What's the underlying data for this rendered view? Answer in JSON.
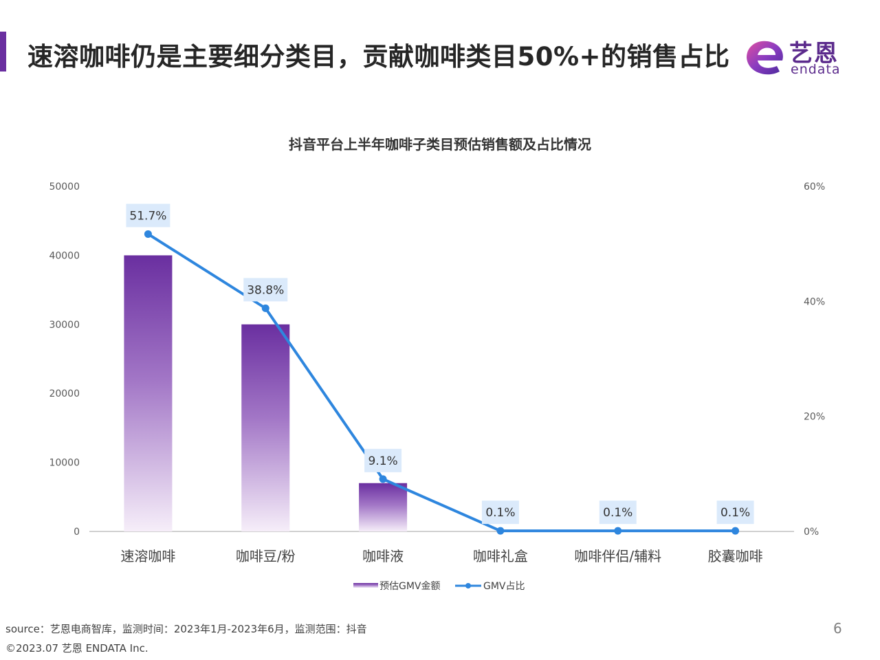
{
  "header": {
    "title": "速溶咖啡仍是主要细分类目，贡献咖啡类目50%+的销售占比",
    "logo_cn": "艺恩",
    "logo_en": "endata"
  },
  "colors": {
    "accent": "#6a2fa0",
    "bar_top": "#6a2fa0",
    "bar_bottom": "#f6eef9",
    "line": "#2e86de",
    "label_bg": "#dbeafb"
  },
  "chart_data": {
    "type": "bar",
    "title": "抖音平台上半年咖啡子类目预估销售额及占比情况",
    "categories": [
      "速溶咖啡",
      "咖啡豆/粉",
      "咖啡液",
      "咖啡礼盒",
      "咖啡伴侣/辅料",
      "胶囊咖啡"
    ],
    "series": [
      {
        "name": "预估GMV金额",
        "type": "bar",
        "axis": "left",
        "values": [
          40000,
          30000,
          7000,
          0,
          0,
          0
        ]
      },
      {
        "name": "GMV占比",
        "type": "line",
        "axis": "right",
        "values": [
          51.7,
          38.8,
          9.1,
          0.1,
          0.1,
          0.1
        ],
        "labels": [
          "51.7%",
          "38.8%",
          "9.1%",
          "0.1%",
          "0.1%",
          "0.1%"
        ]
      }
    ],
    "ylim": [
      0,
      50000
    ],
    "yticks": [
      "0",
      "10000",
      "20000",
      "30000",
      "40000",
      "50000"
    ],
    "y2lim": [
      0,
      60
    ],
    "y2ticks": [
      "0%",
      "20%",
      "40%",
      "60%"
    ],
    "grid": false,
    "legend_position": "bottom"
  },
  "footer": {
    "source": "source：艺恩电商智库，监测时间：2023年1月-2023年6月，监测范围：抖音",
    "copyright": "©2023.07 艺恩 ENDATA Inc.",
    "page": "6"
  }
}
